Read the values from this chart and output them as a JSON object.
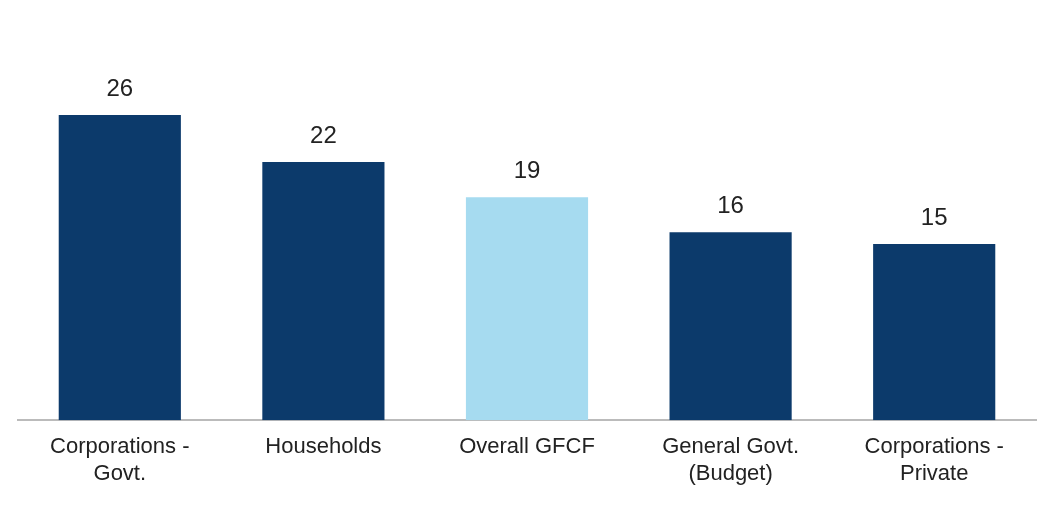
{
  "chart_data": {
    "type": "bar",
    "categories": [
      "Corporations - Govt.",
      "Households",
      "Overall GFCF",
      "General Govt. (Budget)",
      "Corporations - Private"
    ],
    "values": [
      26,
      22,
      19,
      16,
      15
    ],
    "colors": [
      "#0c3a6b",
      "#0c3a6b",
      "#a6dbf0",
      "#0c3a6b",
      "#0c3a6b"
    ],
    "data_labels": true,
    "grid": false,
    "legend": false,
    "tick_labels": "x"
  }
}
